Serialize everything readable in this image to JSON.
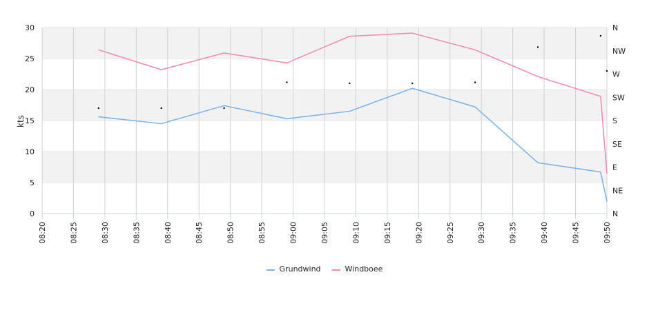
{
  "chart_data": {
    "type": "line",
    "ylabel": "kts",
    "ylim": [
      0,
      30
    ],
    "y_ticks": [
      "0",
      "5",
      "10",
      "15",
      "20",
      "25",
      "30"
    ],
    "x_ticks": [
      "08:20",
      "08:25",
      "08:30",
      "08:35",
      "08:40",
      "08:45",
      "08:50",
      "08:55",
      "09:00",
      "09:05",
      "09:10",
      "09:15",
      "09:20",
      "09:25",
      "09:30",
      "09:35",
      "09:40",
      "09:45",
      "09:50"
    ],
    "y2_ticks": [
      "N",
      "NE",
      "E",
      "SE",
      "S",
      "SW",
      "W",
      "NW",
      "N"
    ],
    "y2lim": [
      0,
      360
    ],
    "x": [
      "08:29",
      "08:39",
      "08:49",
      "08:59",
      "09:09",
      "09:19",
      "09:29",
      "09:39",
      "09:49",
      "09:50"
    ],
    "series": [
      {
        "name": "Grundwind",
        "color": "#7cb5ec",
        "values": [
          15.6,
          14.5,
          17.4,
          15.3,
          16.5,
          20.2,
          17.2,
          8.2,
          6.7,
          2.0
        ]
      },
      {
        "name": "Windboee",
        "color": "#f08cb8",
        "values": [
          26.4,
          23.2,
          25.9,
          24.3,
          28.6,
          29.1,
          26.4,
          22.1,
          18.9,
          6.5
        ]
      }
    ],
    "direction": {
      "x": [
        "08:29",
        "08:39",
        "08:49",
        "08:59",
        "09:09",
        "09:19",
        "09:29",
        "09:39",
        "09:49",
        "09:50"
      ],
      "values": [
        204,
        204,
        204,
        254,
        252,
        252,
        254,
        322,
        344,
        276
      ]
    },
    "grid": true,
    "legend_position": "bottom-center"
  }
}
